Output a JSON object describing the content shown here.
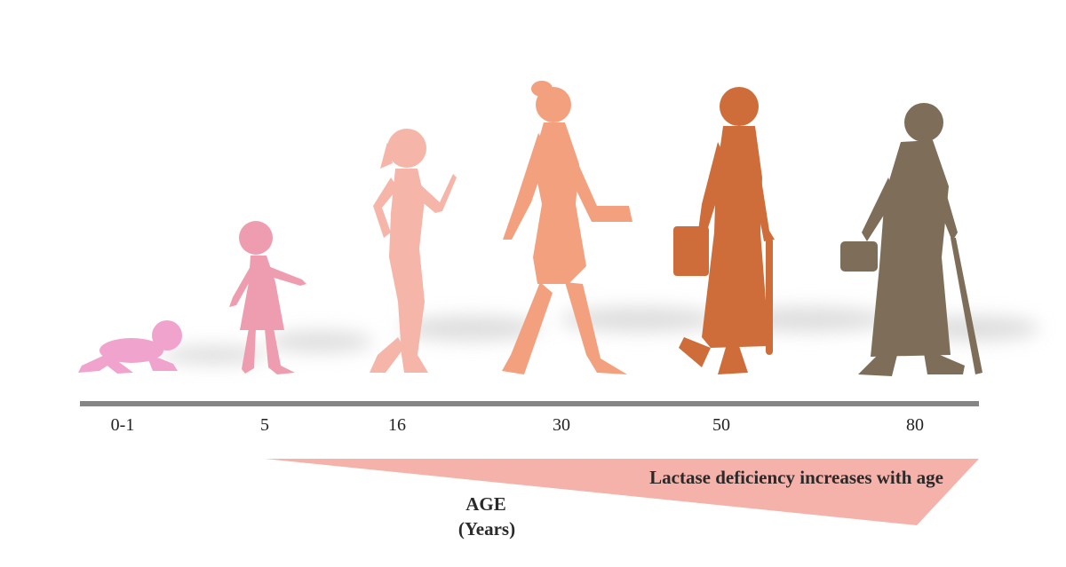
{
  "ages": [
    "0-1",
    "5",
    "16",
    "30",
    "50",
    "80"
  ],
  "wedge_label": "Lactase deficiency increases with age",
  "axis_title": {
    "line1": "AGE",
    "line2": "(Years)"
  }
}
